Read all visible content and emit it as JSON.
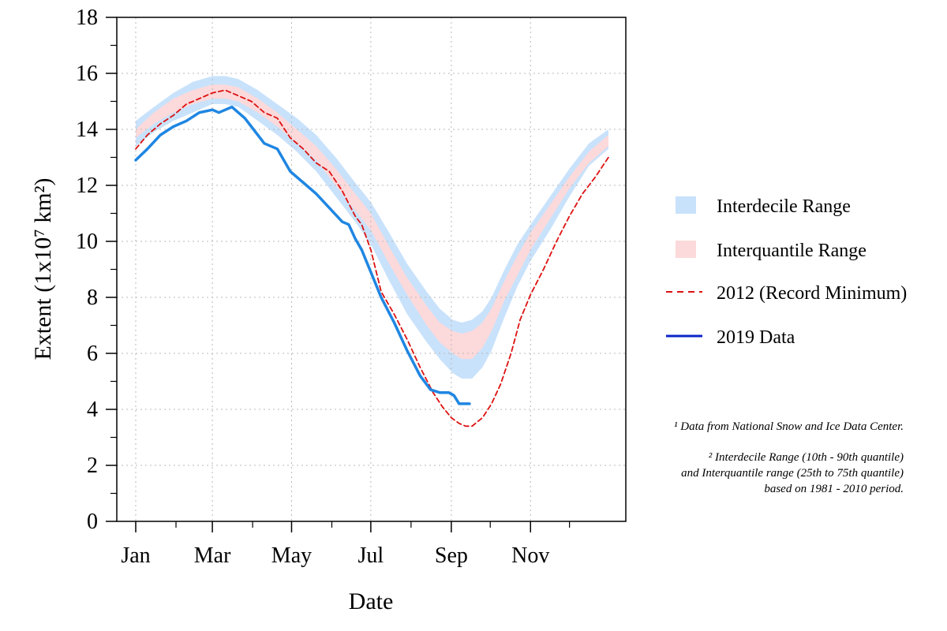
{
  "chart_data": {
    "type": "line",
    "xlabel": "Date",
    "ylabel": "Extent (1x10⁷ km²)",
    "ylim": [
      0,
      18
    ],
    "yticks": [
      0,
      2,
      4,
      6,
      8,
      10,
      12,
      14,
      16,
      18
    ],
    "xlim": [
      "Jan 1",
      "Dec 31"
    ],
    "xtick_labels": [
      "Jan",
      "Mar",
      "May",
      "Jul",
      "Sep",
      "Nov"
    ],
    "x_unit": "day of year",
    "x_label_days": [
      1,
      60,
      121,
      182,
      244,
      305
    ],
    "x_minor_days": [
      32,
      91,
      152,
      213,
      274,
      335
    ],
    "grid": true,
    "legend_position": "right",
    "colors": {
      "interdecile": "#c9e2fb",
      "interquantile": "#fcd9da",
      "record_2012": "#dd1111",
      "data_2019": "#1f86e2",
      "legend_2019": "#0a24c8"
    },
    "bands": [
      {
        "name": "Interdecile Range",
        "x": [
          1,
          15,
          30,
          45,
          60,
          70,
          80,
          95,
          110,
          125,
          140,
          155,
          170,
          182,
          195,
          210,
          225,
          235,
          245,
          252,
          260,
          268,
          275,
          285,
          295,
          305,
          320,
          335,
          350,
          365
        ],
        "lower": [
          13.4,
          13.9,
          14.3,
          14.6,
          14.9,
          14.9,
          14.8,
          14.3,
          13.8,
          13.2,
          12.5,
          11.6,
          10.7,
          9.9,
          8.7,
          7.4,
          6.4,
          5.8,
          5.3,
          5.1,
          5.1,
          5.5,
          6.1,
          7.3,
          8.4,
          9.3,
          10.4,
          11.6,
          12.7,
          13.3
        ],
        "upper": [
          14.3,
          14.8,
          15.3,
          15.7,
          15.9,
          15.9,
          15.8,
          15.4,
          14.9,
          14.4,
          13.8,
          13.0,
          12.1,
          11.4,
          10.4,
          9.2,
          8.2,
          7.6,
          7.2,
          7.1,
          7.2,
          7.5,
          8.0,
          9.0,
          9.9,
          10.6,
          11.6,
          12.6,
          13.5,
          14.0
        ]
      },
      {
        "name": "Interquantile Range",
        "x": [
          1,
          15,
          30,
          45,
          60,
          70,
          80,
          95,
          110,
          125,
          140,
          155,
          170,
          182,
          195,
          210,
          225,
          235,
          245,
          252,
          260,
          268,
          275,
          285,
          295,
          305,
          320,
          335,
          350,
          365
        ],
        "lower": [
          13.7,
          14.2,
          14.6,
          14.9,
          15.1,
          15.1,
          15.0,
          14.6,
          14.1,
          13.5,
          12.9,
          12.0,
          11.1,
          10.4,
          9.3,
          8.1,
          7.0,
          6.4,
          6.0,
          5.8,
          5.8,
          6.2,
          6.8,
          7.9,
          8.8,
          9.7,
          10.8,
          11.9,
          12.8,
          13.4
        ],
        "upper": [
          14.0,
          14.6,
          15.1,
          15.4,
          15.6,
          15.6,
          15.5,
          15.1,
          14.6,
          14.0,
          13.4,
          12.6,
          11.7,
          11.0,
          9.9,
          8.7,
          7.7,
          7.1,
          6.8,
          6.7,
          6.8,
          7.1,
          7.6,
          8.6,
          9.5,
          10.3,
          11.3,
          12.3,
          13.2,
          13.8
        ]
      }
    ],
    "series": [
      {
        "name": "2012 (Record Minimum)",
        "style": "dashed",
        "x": [
          1,
          10,
          20,
          30,
          40,
          50,
          60,
          70,
          80,
          90,
          100,
          110,
          120,
          130,
          140,
          150,
          160,
          170,
          175,
          182,
          190,
          200,
          210,
          220,
          230,
          237,
          244,
          250,
          255,
          260,
          268,
          275,
          282,
          290,
          297,
          305,
          315,
          325,
          335,
          345,
          355,
          365
        ],
        "y": [
          13.3,
          13.8,
          14.2,
          14.5,
          14.9,
          15.1,
          15.3,
          15.4,
          15.2,
          15.0,
          14.6,
          14.4,
          13.7,
          13.3,
          12.8,
          12.5,
          11.8,
          10.9,
          10.6,
          9.7,
          8.2,
          7.4,
          6.5,
          5.5,
          4.6,
          4.1,
          3.7,
          3.5,
          3.4,
          3.4,
          3.7,
          4.2,
          4.9,
          6.0,
          7.2,
          8.1,
          9.0,
          10.0,
          10.9,
          11.7,
          12.3,
          13.0
        ]
      },
      {
        "name": "2019 Data",
        "style": "solid",
        "x": [
          1,
          10,
          20,
          30,
          40,
          50,
          60,
          65,
          70,
          75,
          80,
          85,
          90,
          100,
          110,
          115,
          120,
          130,
          140,
          150,
          160,
          165,
          170,
          175,
          182,
          190,
          200,
          210,
          220,
          228,
          235,
          242,
          246,
          250,
          253,
          258
        ],
        "y": [
          12.9,
          13.3,
          13.8,
          14.1,
          14.3,
          14.6,
          14.7,
          14.6,
          14.7,
          14.8,
          14.6,
          14.4,
          14.1,
          13.5,
          13.3,
          12.9,
          12.5,
          12.1,
          11.7,
          11.2,
          10.7,
          10.6,
          10.1,
          9.7,
          8.9,
          8.0,
          7.1,
          6.1,
          5.2,
          4.7,
          4.6,
          4.6,
          4.5,
          4.2,
          4.2,
          4.2
        ]
      }
    ],
    "legend": [
      {
        "key": "interdecile",
        "label": "Interdecile Range",
        "kind": "patch"
      },
      {
        "key": "interquantile",
        "label": "Interquantile Range",
        "kind": "patch"
      },
      {
        "key": "record_2012",
        "label": "2012 (Record Minimum)",
        "kind": "dashed"
      },
      {
        "key": "legend_2019",
        "label": "2019 Data",
        "kind": "solid"
      }
    ],
    "notes": {
      "source": "¹ Data from National Snow and Ice Data Center.",
      "range_line1": "²  Interdecile Range (10th - 90th quantile)",
      "range_line2": "and Interquantile range (25th to 75th quantile)",
      "range_line3": "based on 1981 - 2010 period."
    }
  }
}
